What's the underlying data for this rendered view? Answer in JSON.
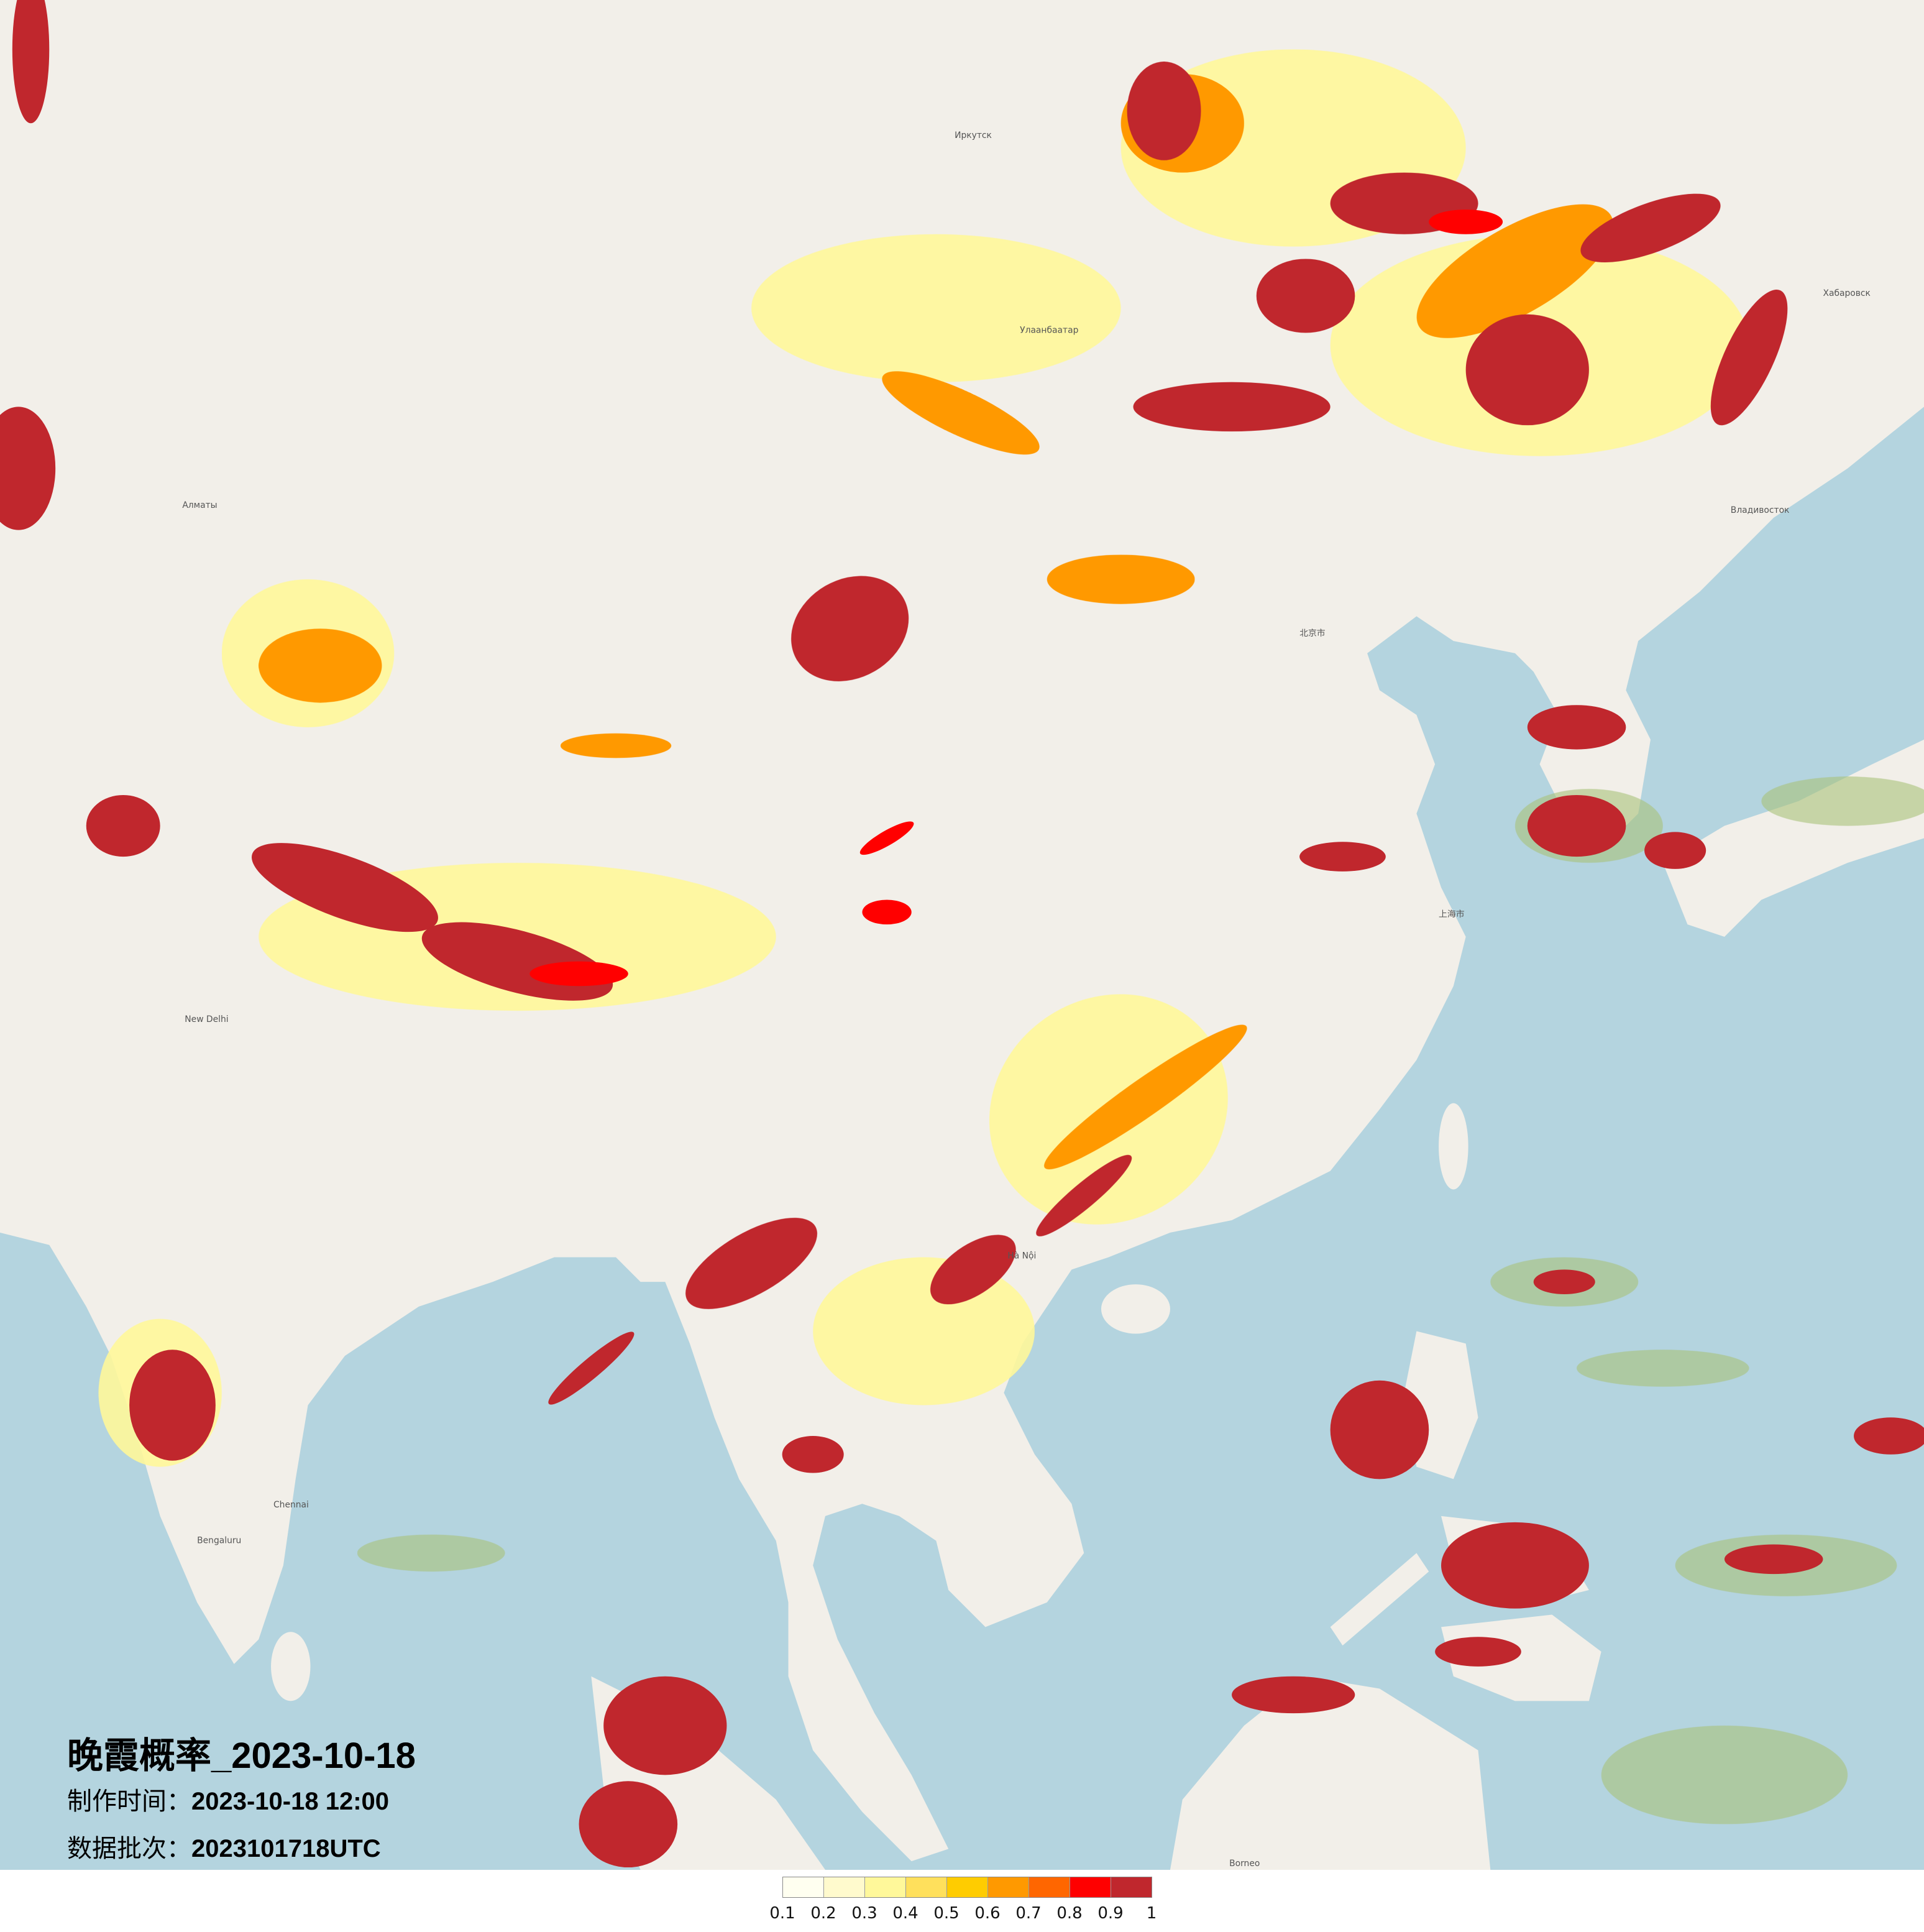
{
  "title": "晚霞概率_2023-10-18",
  "production_time": {
    "label": "制作时间：",
    "value": "2023-10-18 12:00"
  },
  "data_batch": {
    "label": "数据批次：",
    "value": "2023101718UTC"
  },
  "legend": {
    "colors": [
      "#fffff0",
      "#fffacd",
      "#fff89a",
      "#ffe05c",
      "#ffcc00",
      "#ff9900",
      "#ff6600",
      "#ff0000",
      "#c0272d"
    ],
    "ticks": [
      "0.1",
      "0.2",
      "0.3",
      "0.4",
      "0.5",
      "0.6",
      "0.7",
      "0.8",
      "0.9",
      "1"
    ]
  },
  "map": {
    "land_color": "#f2efe9",
    "sea_color": "#b4d4df",
    "places": [
      "Улаанбаатар",
      "北京市",
      "上海市",
      "Хабаровск",
      "Владивосток",
      "New Delhi",
      "Hà Nội",
      "Bengaluru",
      "Borneo",
      "Алматы",
      "Иркутск",
      "Chennai"
    ]
  }
}
